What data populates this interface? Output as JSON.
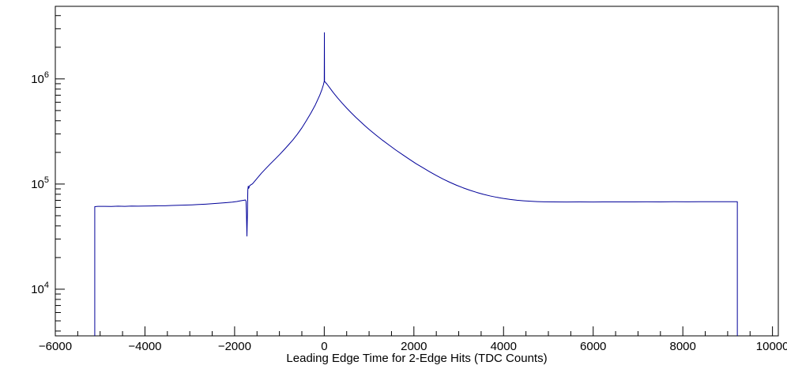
{
  "figure": {
    "background": "#ffffff",
    "frame_color": "#000000",
    "line_color": "#000099",
    "text_color": "#000000"
  },
  "chart_data": {
    "type": "line",
    "title": "",
    "xlabel": "Leading Edge Time for 2-Edge Hits (TDC Counts)",
    "ylabel": "",
    "y_scale": "log",
    "grid": false,
    "legend": "none",
    "xlim": [
      -6000,
      10130
    ],
    "ylim": [
      3600,
      4900000
    ],
    "x_ticks": [
      -6000,
      -4000,
      -2000,
      0,
      2000,
      4000,
      6000,
      8000,
      10000
    ],
    "x_tick_labels": [
      "−6000",
      "−4000",
      "−2000",
      "0",
      "2000",
      "4000",
      "6000",
      "8000",
      "10000"
    ],
    "x_minor_step": 500,
    "y_tick_exponents": [
      4,
      5,
      6
    ],
    "y_tick_labels": [
      "10^4",
      "10^5",
      "10^6"
    ],
    "points": [
      [
        -5120,
        3600
      ],
      [
        -5120,
        61000
      ],
      [
        -5050,
        61300
      ],
      [
        -4900,
        61400
      ],
      [
        -4750,
        61200
      ],
      [
        -4600,
        61600
      ],
      [
        -4450,
        61400
      ],
      [
        -4300,
        61700
      ],
      [
        -4150,
        61600
      ],
      [
        -4000,
        61800
      ],
      [
        -3850,
        61900
      ],
      [
        -3700,
        62100
      ],
      [
        -3550,
        62200
      ],
      [
        -3400,
        62500
      ],
      [
        -3250,
        62800
      ],
      [
        -3100,
        63100
      ],
      [
        -2950,
        63400
      ],
      [
        -2800,
        63900
      ],
      [
        -2650,
        64400
      ],
      [
        -2500,
        65000
      ],
      [
        -2350,
        65700
      ],
      [
        -2200,
        66500
      ],
      [
        -2050,
        67400
      ],
      [
        -1950,
        68200
      ],
      [
        -1870,
        69300
      ],
      [
        -1790,
        70200
      ],
      [
        -1758,
        70600
      ],
      [
        -1745,
        68500
      ],
      [
        -1735,
        52000
      ],
      [
        -1725,
        32000
      ],
      [
        -1714,
        52000
      ],
      [
        -1705,
        88000
      ],
      [
        -1695,
        95500
      ],
      [
        -1686,
        91000
      ],
      [
        -1660,
        97000
      ],
      [
        -1600,
        100500
      ],
      [
        -1500,
        113000
      ],
      [
        -1400,
        127000
      ],
      [
        -1300,
        141000
      ],
      [
        -1200,
        156000
      ],
      [
        -1100,
        172000
      ],
      [
        -1000,
        190000
      ],
      [
        -900,
        211000
      ],
      [
        -800,
        235000
      ],
      [
        -700,
        263000
      ],
      [
        -600,
        298000
      ],
      [
        -500,
        342000
      ],
      [
        -400,
        400000
      ],
      [
        -300,
        472000
      ],
      [
        -200,
        565000
      ],
      [
        -100,
        700000
      ],
      [
        -50,
        796000
      ],
      [
        -20,
        876000
      ],
      [
        -8,
        920000
      ],
      [
        0,
        948000
      ],
      [
        3,
        2750000
      ],
      [
        6,
        948000
      ],
      [
        60,
        893000
      ],
      [
        120,
        826000
      ],
      [
        200,
        742000
      ],
      [
        300,
        658000
      ],
      [
        400,
        588000
      ],
      [
        500,
        528000
      ],
      [
        600,
        477000
      ],
      [
        700,
        433000
      ],
      [
        800,
        395000
      ],
      [
        900,
        361000
      ],
      [
        1000,
        331000
      ],
      [
        1150,
        293000
      ],
      [
        1300,
        261000
      ],
      [
        1450,
        234000
      ],
      [
        1600,
        210000
      ],
      [
        1750,
        190000
      ],
      [
        1900,
        172000
      ],
      [
        2050,
        156000
      ],
      [
        2200,
        143000
      ],
      [
        2350,
        131000
      ],
      [
        2500,
        120500
      ],
      [
        2650,
        111500
      ],
      [
        2800,
        104000
      ],
      [
        2950,
        97500
      ],
      [
        3100,
        92000
      ],
      [
        3250,
        87300
      ],
      [
        3400,
        83300
      ],
      [
        3550,
        79900
      ],
      [
        3700,
        77100
      ],
      [
        3850,
        74800
      ],
      [
        4000,
        72900
      ],
      [
        4150,
        71400
      ],
      [
        4300,
        70200
      ],
      [
        4450,
        69300
      ],
      [
        4600,
        68600
      ],
      [
        4750,
        68100
      ],
      [
        4900,
        67800
      ],
      [
        5100,
        67600
      ],
      [
        5400,
        67500
      ],
      [
        5700,
        67600
      ],
      [
        6000,
        67500
      ],
      [
        6300,
        67700
      ],
      [
        6600,
        67600
      ],
      [
        6900,
        67700
      ],
      [
        7200,
        67800
      ],
      [
        7500,
        67700
      ],
      [
        7800,
        67900
      ],
      [
        8100,
        67800
      ],
      [
        8400,
        67900
      ],
      [
        8700,
        68000
      ],
      [
        9000,
        68000
      ],
      [
        9216,
        68000
      ],
      [
        9216,
        3600
      ]
    ]
  }
}
